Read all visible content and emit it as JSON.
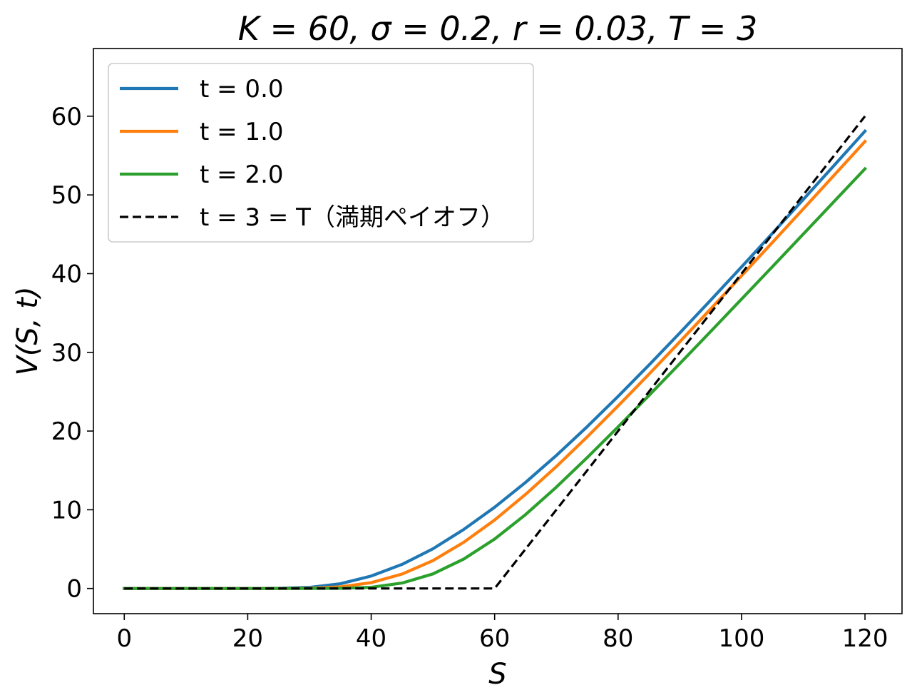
{
  "chart_data": {
    "type": "line",
    "title": "K = 60, σ = 0.2, r = 0.03, T = 3",
    "xlabel": "S",
    "ylabel": "V(S, t)",
    "xlim": [
      -5,
      126
    ],
    "ylim": [
      -3.2,
      68.6
    ],
    "xticks": [
      0,
      20,
      40,
      60,
      80,
      100,
      120
    ],
    "yticks": [
      0,
      10,
      20,
      30,
      40,
      50,
      60
    ],
    "grid": false,
    "legend_position": "top-left",
    "params": {
      "K": 60,
      "sigma": 0.2,
      "r": 0.03,
      "T": 3
    },
    "x": [
      0,
      10,
      20,
      25,
      30,
      35,
      40,
      45,
      50,
      55,
      60,
      65,
      70,
      75,
      80,
      85,
      90,
      95,
      100,
      105,
      110,
      115,
      120
    ],
    "series": [
      {
        "name": "t = 0.0",
        "color": "#1f77b4",
        "dash": "solid",
        "values": [
          0,
          0,
          0,
          0.02,
          0.14,
          0.6,
          1.58,
          3.06,
          5.04,
          7.5,
          10.32,
          13.47,
          16.9,
          20.56,
          24.4,
          28.38,
          32.47,
          36.63,
          40.85,
          45.12,
          49.42,
          53.75,
          58.1
        ]
      },
      {
        "name": "t = 1.0",
        "color": "#ff7f0e",
        "dash": "solid",
        "values": [
          0,
          0,
          0,
          0,
          0.03,
          0.2,
          0.74,
          1.83,
          3.54,
          5.87,
          8.7,
          11.95,
          15.49,
          19.26,
          23.19,
          27.22,
          31.34,
          35.51,
          39.72,
          43.96,
          48.22,
          52.5,
          56.79
        ]
      },
      {
        "name": "t = 2.0",
        "color": "#2ca02c",
        "dash": "solid",
        "values": [
          0,
          0,
          0,
          0,
          0,
          0.02,
          0.15,
          0.69,
          1.85,
          3.74,
          6.28,
          9.38,
          12.88,
          16.63,
          20.53,
          24.52,
          28.57,
          32.65,
          36.76,
          40.88,
          45.02,
          49.17,
          53.32
        ]
      },
      {
        "name": "t = 3 = T（満期ペイオフ）",
        "color": "#000000",
        "dash": "dashed",
        "values": [
          0,
          0,
          0,
          0,
          0,
          0,
          0,
          0,
          0,
          0,
          0,
          5,
          10,
          15,
          20,
          25,
          30,
          35,
          40,
          45,
          50,
          55,
          60
        ]
      }
    ]
  }
}
